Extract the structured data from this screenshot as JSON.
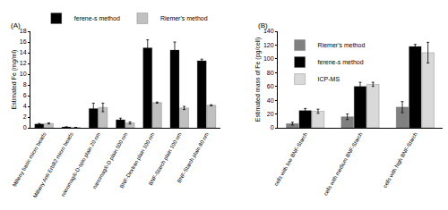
{
  "chart_data": [
    {
      "type": "bar",
      "title": "(A)",
      "y_label": "Estimated Fe (mg/ml)",
      "categories": [
        "Milteny basic micro beads",
        "Milteny Anti ErbB2 micro beads",
        "nanomag®-D-spio plain 20 nm",
        "nanomag®-D plain 500 nm",
        "BNF-Dextran plain 100 nm",
        "BNF-Starch plain 100 nm",
        "BNF-Starch plain 80 nm"
      ],
      "series": [
        {
          "name": "ferene-s method",
          "color": "#000000",
          "values": [
            0.7,
            0.15,
            3.6,
            1.5,
            14.9,
            14.5,
            12.5
          ],
          "error": [
            0.1,
            0.02,
            1.0,
            0.3,
            1.5,
            1.5,
            0.3
          ]
        },
        {
          "name": "Riemer's method",
          "color": "#c0c0c0",
          "values": [
            0.8,
            0.05,
            3.8,
            0.9,
            4.7,
            3.7,
            4.2
          ],
          "error": [
            0.1,
            0.02,
            0.8,
            0.2,
            0.1,
            0.3,
            0.1
          ]
        }
      ],
      "ylim": [
        0,
        18
      ],
      "yticks": [
        0,
        2,
        4,
        6,
        8,
        10,
        12,
        14,
        16,
        18
      ],
      "grid": false,
      "legend": "top"
    },
    {
      "type": "bar",
      "title": "(B)",
      "y_label": "Estimated mass of Fe (pg/cell)",
      "categories": [
        "cells with low BNF-Starch",
        "cells with medium BNF-Starch",
        "cells with high BNF-Starch"
      ],
      "series": [
        {
          "name": "Riemer's method",
          "color": "#808080",
          "values": [
            6,
            16,
            30
          ],
          "error": [
            2,
            4,
            8
          ]
        },
        {
          "name": "ferene-s method",
          "color": "#000000",
          "values": [
            25,
            60,
            118
          ],
          "error": [
            3,
            6,
            3
          ]
        },
        {
          "name": "ICP-MS",
          "color": "#d9d9d9",
          "values": [
            24,
            63,
            109
          ],
          "error": [
            3,
            3,
            15
          ]
        }
      ],
      "ylim": [
        0,
        140
      ],
      "yticks": [
        0,
        20,
        40,
        60,
        80,
        100,
        120,
        140
      ],
      "grid": false,
      "legend": "top left"
    }
  ]
}
